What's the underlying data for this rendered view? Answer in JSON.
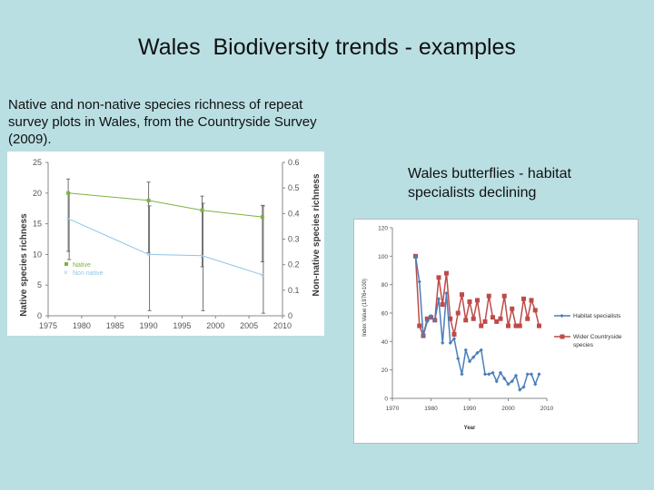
{
  "slide": {
    "title": "Wales  Biodiversity trends - examples",
    "caption_left": "Native and non-native species richness of repeat survey plots in Wales, from the Countryside Survey (2009).",
    "caption_right": "Wales butterflies - habitat specialists declining"
  },
  "chart_data": [
    {
      "type": "line",
      "title": "",
      "xlabel": "",
      "ylabel": "Native species richness",
      "y2label": "Non-native species richness",
      "xlim": [
        1975,
        2010
      ],
      "ylim": [
        0,
        25
      ],
      "y2lim": [
        0,
        0.6
      ],
      "xticks": [
        1975,
        1980,
        1985,
        1990,
        1995,
        2000,
        2005,
        2010
      ],
      "yticks": [
        0,
        5,
        10,
        15,
        20,
        25
      ],
      "y2ticks": [
        0,
        0.1,
        0.2,
        0.3,
        0.4,
        0.5,
        0.6
      ],
      "grid": false,
      "legend_position": "bottom-left",
      "colors": {
        "native": "#7cb342",
        "non_native": "#8fc5e6",
        "error": "#707070"
      },
      "series": [
        {
          "name": "Native",
          "axis": "left",
          "x": [
            1978,
            1990,
            1998,
            2007
          ],
          "values": [
            20,
            18.8,
            17.2,
            16.1
          ],
          "error_low": [
            10.5,
            10.3,
            8.0,
            8.8
          ],
          "error_high": [
            22.3,
            21.8,
            19.5,
            18.0
          ]
        },
        {
          "name": "Non native",
          "axis": "right",
          "x": [
            1978,
            1990,
            1998,
            2007
          ],
          "values": [
            0.38,
            0.24,
            0.235,
            0.16
          ],
          "error_low": [
            0.22,
            0.02,
            0.02,
            0.01
          ],
          "error_high": [
            0.48,
            0.43,
            0.44,
            0.43
          ]
        }
      ]
    },
    {
      "type": "line",
      "title": "",
      "xlabel": "Year",
      "ylabel": "Index Value (1976=100)",
      "xlim": [
        1970,
        2010
      ],
      "ylim": [
        0,
        120
      ],
      "xticks": [
        1970,
        1980,
        1990,
        2000,
        2010
      ],
      "yticks": [
        0,
        20,
        40,
        60,
        80,
        100,
        120
      ],
      "grid": false,
      "legend_position": "right",
      "colors": {
        "habitat": "#4a7ebb",
        "wider": "#be4b48"
      },
      "series": [
        {
          "name": "Habitat specialists",
          "x": [
            1976,
            1977,
            1978,
            1979,
            1980,
            1981,
            1982,
            1983,
            1984,
            1985,
            1986,
            1987,
            1988,
            1989,
            1990,
            1991,
            1992,
            1993,
            1994,
            1995,
            1996,
            1997,
            1998,
            1999,
            2000,
            2001,
            2002,
            2003,
            2004,
            2005,
            2006,
            2007,
            2008
          ],
          "values": [
            100,
            82,
            44,
            54,
            58,
            55,
            70,
            39,
            74,
            39,
            42,
            28,
            17,
            34,
            26,
            29,
            32,
            34,
            17,
            17,
            18,
            12,
            18,
            14,
            10,
            12,
            16,
            6,
            8,
            17,
            17,
            10,
            17
          ]
        },
        {
          "name": "Wider Countryside species",
          "x": [
            1976,
            1977,
            1978,
            1979,
            1980,
            1981,
            1982,
            1983,
            1984,
            1985,
            1986,
            1987,
            1988,
            1989,
            1990,
            1991,
            1992,
            1993,
            1994,
            1995,
            1996,
            1997,
            1998,
            1999,
            2000,
            2001,
            2002,
            2003,
            2004,
            2005,
            2006,
            2007,
            2008
          ],
          "values": [
            100,
            51,
            44,
            56,
            57,
            55,
            85,
            66,
            88,
            56,
            45,
            60,
            73,
            55,
            68,
            56,
            69,
            51,
            54,
            72,
            57,
            54,
            56,
            72,
            51,
            63,
            51,
            51,
            70,
            56,
            69,
            62,
            51
          ]
        }
      ]
    }
  ]
}
